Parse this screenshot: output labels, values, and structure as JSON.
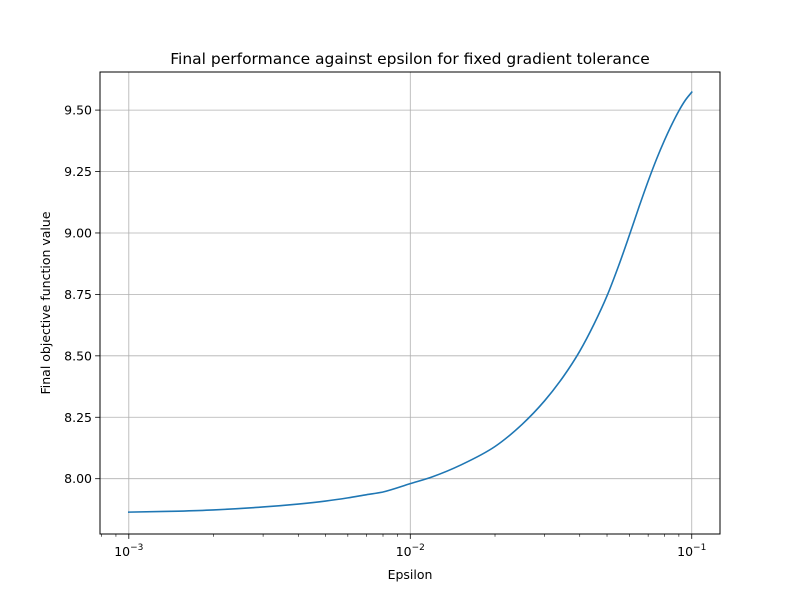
{
  "chart_data": {
    "type": "line",
    "title": "Final performance against epsilon for fixed gradient tolerance",
    "xlabel": "Epsilon",
    "ylabel": "Final objective function value",
    "xscale": "log",
    "yscale": "linear",
    "xlim": [
      0.00079,
      0.126
    ],
    "ylim": [
      7.775,
      9.655
    ],
    "grid": true,
    "legend": "none",
    "line_color": "#1f77b4",
    "x_ticks": [
      {
        "value": 0.001,
        "base": "10",
        "exp": "−3"
      },
      {
        "value": 0.01,
        "base": "10",
        "exp": "−2"
      },
      {
        "value": 0.1,
        "base": "10",
        "exp": "−1"
      }
    ],
    "y_ticks": [
      {
        "value": 8.0,
        "label": "8.00"
      },
      {
        "value": 8.25,
        "label": "8.25"
      },
      {
        "value": 8.5,
        "label": "8.50"
      },
      {
        "value": 8.75,
        "label": "8.75"
      },
      {
        "value": 9.0,
        "label": "9.00"
      },
      {
        "value": 9.25,
        "label": "9.25"
      },
      {
        "value": 9.5,
        "label": "9.50"
      }
    ],
    "series": [
      {
        "x": [
          0.001,
          0.0015,
          0.002,
          0.003,
          0.004,
          0.005,
          0.006,
          0.007,
          0.008,
          0.01,
          0.012,
          0.015,
          0.02,
          0.025,
          0.03,
          0.035,
          0.04,
          0.045,
          0.05,
          0.055,
          0.06,
          0.065,
          0.07,
          0.075,
          0.08,
          0.085,
          0.09,
          0.095,
          0.1
        ],
        "y": [
          7.864,
          7.868,
          7.873,
          7.885,
          7.897,
          7.909,
          7.922,
          7.935,
          7.946,
          7.98,
          8.008,
          8.054,
          8.131,
          8.222,
          8.317,
          8.416,
          8.519,
          8.63,
          8.744,
          8.867,
          8.99,
          9.107,
          9.211,
          9.301,
          9.377,
          9.442,
          9.497,
          9.541,
          9.573
        ]
      }
    ]
  }
}
